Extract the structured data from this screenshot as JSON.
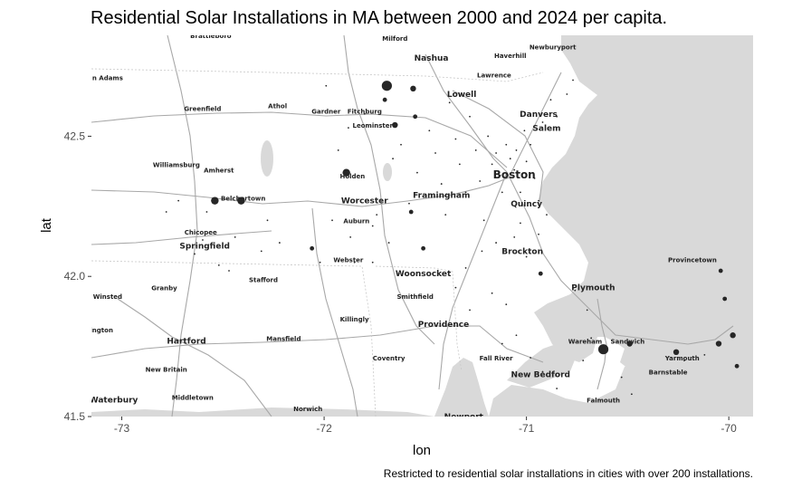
{
  "chart_data": {
    "type": "scatter",
    "title": "Residential Solar Installations in MA between 2000 and 2024 per capita.",
    "xlabel": "lon",
    "ylabel": "lat",
    "caption": "Restricted to residential solar installations in cities with over 200 installations.",
    "xlim": [
      -73.15,
      -69.88
    ],
    "ylim": [
      41.5,
      42.86
    ],
    "xticks": [
      -73,
      -72,
      -71,
      -70
    ],
    "xtick_labels": [
      "-73",
      "-72",
      "-71",
      "-70"
    ],
    "yticks": [
      41.5,
      42.0,
      42.5
    ],
    "ytick_labels": [
      "41.5",
      "42.0",
      "42.5"
    ],
    "grid": true,
    "basemap": "grayscale street map",
    "colors": {
      "point": "#262626",
      "water": "#d9d9d9",
      "land": "#ffffff",
      "road": "#aaaaaa"
    },
    "points": [
      {
        "lon": -71.69,
        "lat": 42.68,
        "size": 4
      },
      {
        "lon": -71.56,
        "lat": 42.67,
        "size": 2
      },
      {
        "lon": -71.65,
        "lat": 42.54,
        "size": 2
      },
      {
        "lon": -71.55,
        "lat": 42.57,
        "size": 1
      },
      {
        "lon": -71.89,
        "lat": 42.37,
        "size": 3
      },
      {
        "lon": -72.54,
        "lat": 42.27,
        "size": 3
      },
      {
        "lon": -72.41,
        "lat": 42.27,
        "size": 3
      },
      {
        "lon": -72.06,
        "lat": 42.1,
        "size": 1
      },
      {
        "lon": -71.57,
        "lat": 42.23,
        "size": 1
      },
      {
        "lon": -71.51,
        "lat": 42.1,
        "size": 1
      },
      {
        "lon": -70.93,
        "lat": 42.01,
        "size": 1
      },
      {
        "lon": -70.62,
        "lat": 41.74,
        "size": 4
      },
      {
        "lon": -70.49,
        "lat": 41.76,
        "size": 2
      },
      {
        "lon": -70.26,
        "lat": 41.73,
        "size": 2
      },
      {
        "lon": -70.05,
        "lat": 41.76,
        "size": 2
      },
      {
        "lon": -69.98,
        "lat": 41.79,
        "size": 2
      },
      {
        "lon": -70.02,
        "lat": 41.92,
        "size": 1
      },
      {
        "lon": -70.04,
        "lat": 42.02,
        "size": 1
      },
      {
        "lon": -69.96,
        "lat": 41.68,
        "size": 1
      },
      {
        "lon": -71.7,
        "lat": 42.63,
        "size": 1
      },
      {
        "lon": -71.76,
        "lat": 42.18,
        "size": 0
      },
      {
        "lon": -71.74,
        "lat": 42.22,
        "size": 0
      },
      {
        "lon": -71.66,
        "lat": 42.42,
        "size": 0
      },
      {
        "lon": -71.62,
        "lat": 42.47,
        "size": 0
      },
      {
        "lon": -71.58,
        "lat": 42.26,
        "size": 0
      },
      {
        "lon": -71.54,
        "lat": 42.37,
        "size": 0
      },
      {
        "lon": -71.48,
        "lat": 42.52,
        "size": 0
      },
      {
        "lon": -71.45,
        "lat": 42.44,
        "size": 0
      },
      {
        "lon": -71.42,
        "lat": 42.33,
        "size": 0
      },
      {
        "lon": -71.4,
        "lat": 42.22,
        "size": 0
      },
      {
        "lon": -71.38,
        "lat": 42.62,
        "size": 0
      },
      {
        "lon": -71.35,
        "lat": 42.49,
        "size": 0
      },
      {
        "lon": -71.33,
        "lat": 42.4,
        "size": 0
      },
      {
        "lon": -71.3,
        "lat": 42.3,
        "size": 0
      },
      {
        "lon": -71.28,
        "lat": 42.57,
        "size": 0
      },
      {
        "lon": -71.25,
        "lat": 42.45,
        "size": 0
      },
      {
        "lon": -71.23,
        "lat": 42.34,
        "size": 0
      },
      {
        "lon": -71.21,
        "lat": 42.2,
        "size": 0
      },
      {
        "lon": -71.19,
        "lat": 42.5,
        "size": 0
      },
      {
        "lon": -71.17,
        "lat": 42.4,
        "size": 0
      },
      {
        "lon": -71.15,
        "lat": 42.44,
        "size": 0
      },
      {
        "lon": -71.13,
        "lat": 42.36,
        "size": 0
      },
      {
        "lon": -71.12,
        "lat": 42.3,
        "size": 0
      },
      {
        "lon": -71.1,
        "lat": 42.47,
        "size": 0
      },
      {
        "lon": -71.08,
        "lat": 42.42,
        "size": 0
      },
      {
        "lon": -71.06,
        "lat": 42.38,
        "size": 0
      },
      {
        "lon": -71.05,
        "lat": 42.45,
        "size": 0
      },
      {
        "lon": -71.03,
        "lat": 42.3,
        "size": 0
      },
      {
        "lon": -71.01,
        "lat": 42.52,
        "size": 0
      },
      {
        "lon": -71.0,
        "lat": 42.41,
        "size": 0
      },
      {
        "lon": -70.98,
        "lat": 42.47,
        "size": 0
      },
      {
        "lon": -70.96,
        "lat": 42.35,
        "size": 0
      },
      {
        "lon": -70.94,
        "lat": 42.27,
        "size": 0
      },
      {
        "lon": -70.92,
        "lat": 42.55,
        "size": 0
      },
      {
        "lon": -70.9,
        "lat": 42.22,
        "size": 0
      },
      {
        "lon": -70.88,
        "lat": 42.63,
        "size": 0
      },
      {
        "lon": -70.85,
        "lat": 42.57,
        "size": 0
      },
      {
        "lon": -70.8,
        "lat": 42.65,
        "size": 0
      },
      {
        "lon": -70.77,
        "lat": 42.7,
        "size": 0
      },
      {
        "lon": -71.03,
        "lat": 42.19,
        "size": 0
      },
      {
        "lon": -71.06,
        "lat": 42.14,
        "size": 0
      },
      {
        "lon": -71.0,
        "lat": 42.07,
        "size": 0
      },
      {
        "lon": -70.94,
        "lat": 42.15,
        "size": 0
      },
      {
        "lon": -71.15,
        "lat": 42.12,
        "size": 0
      },
      {
        "lon": -71.22,
        "lat": 42.09,
        "size": 0
      },
      {
        "lon": -71.3,
        "lat": 42.03,
        "size": 0
      },
      {
        "lon": -71.35,
        "lat": 41.96,
        "size": 0
      },
      {
        "lon": -71.28,
        "lat": 41.88,
        "size": 0
      },
      {
        "lon": -71.17,
        "lat": 41.94,
        "size": 0
      },
      {
        "lon": -71.1,
        "lat": 41.9,
        "size": 0
      },
      {
        "lon": -71.05,
        "lat": 41.79,
        "size": 0
      },
      {
        "lon": -71.12,
        "lat": 41.76,
        "size": 0
      },
      {
        "lon": -70.98,
        "lat": 41.71,
        "size": 0
      },
      {
        "lon": -70.92,
        "lat": 41.66,
        "size": 0
      },
      {
        "lon": -70.85,
        "lat": 41.6,
        "size": 0
      },
      {
        "lon": -70.72,
        "lat": 41.7,
        "size": 0
      },
      {
        "lon": -70.68,
        "lat": 41.78,
        "size": 0
      },
      {
        "lon": -70.7,
        "lat": 41.88,
        "size": 0
      },
      {
        "lon": -70.76,
        "lat": 41.95,
        "size": 0
      },
      {
        "lon": -70.53,
        "lat": 41.64,
        "size": 0
      },
      {
        "lon": -70.48,
        "lat": 41.58,
        "size": 0
      },
      {
        "lon": -70.22,
        "lat": 41.7,
        "size": 0
      },
      {
        "lon": -70.12,
        "lat": 41.72,
        "size": 0
      },
      {
        "lon": -71.88,
        "lat": 42.53,
        "size": 0
      },
      {
        "lon": -71.93,
        "lat": 42.45,
        "size": 0
      },
      {
        "lon": -71.96,
        "lat": 42.2,
        "size": 0
      },
      {
        "lon": -71.87,
        "lat": 42.14,
        "size": 0
      },
      {
        "lon": -71.85,
        "lat": 42.05,
        "size": 0
      },
      {
        "lon": -71.76,
        "lat": 42.05,
        "size": 0
      },
      {
        "lon": -71.68,
        "lat": 42.12,
        "size": 0
      },
      {
        "lon": -71.63,
        "lat": 42.01,
        "size": 0
      },
      {
        "lon": -72.02,
        "lat": 42.05,
        "size": 0
      },
      {
        "lon": -72.22,
        "lat": 42.12,
        "size": 0
      },
      {
        "lon": -72.31,
        "lat": 42.09,
        "size": 0
      },
      {
        "lon": -72.28,
        "lat": 42.2,
        "size": 0
      },
      {
        "lon": -72.44,
        "lat": 42.14,
        "size": 0
      },
      {
        "lon": -72.52,
        "lat": 42.04,
        "size": 0
      },
      {
        "lon": -72.47,
        "lat": 42.02,
        "size": 0
      },
      {
        "lon": -72.58,
        "lat": 42.23,
        "size": 0
      },
      {
        "lon": -72.72,
        "lat": 42.27,
        "size": 0
      },
      {
        "lon": -72.78,
        "lat": 42.23,
        "size": 0
      },
      {
        "lon": -72.6,
        "lat": 42.13,
        "size": 0
      },
      {
        "lon": -72.64,
        "lat": 42.08,
        "size": 0
      },
      {
        "lon": -71.99,
        "lat": 42.68,
        "size": 0
      },
      {
        "lon": -71.8,
        "lat": 42.58,
        "size": 0
      }
    ],
    "place_labels": [
      {
        "name": "Brattleboro",
        "lon": -72.56,
        "lat": 42.85,
        "weight": "small"
      },
      {
        "name": "Milford",
        "lon": -71.65,
        "lat": 42.84,
        "weight": "small"
      },
      {
        "name": "Newburyport",
        "lon": -70.87,
        "lat": 42.81,
        "weight": "small"
      },
      {
        "name": "Haverhill",
        "lon": -71.08,
        "lat": 42.78,
        "weight": "small"
      },
      {
        "name": "Nashua",
        "lon": -71.47,
        "lat": 42.77,
        "weight": "medium"
      },
      {
        "name": "n Adams",
        "lon": -73.07,
        "lat": 42.7,
        "weight": "small"
      },
      {
        "name": "Lawrence",
        "lon": -71.16,
        "lat": 42.71,
        "weight": "small"
      },
      {
        "name": "Lowell",
        "lon": -71.32,
        "lat": 42.64,
        "weight": "medium"
      },
      {
        "name": "Greenfield",
        "lon": -72.6,
        "lat": 42.59,
        "weight": "small"
      },
      {
        "name": "Athol",
        "lon": -72.23,
        "lat": 42.6,
        "weight": "small"
      },
      {
        "name": "Gardner",
        "lon": -71.99,
        "lat": 42.58,
        "weight": "small"
      },
      {
        "name": "Fitchburg",
        "lon": -71.8,
        "lat": 42.58,
        "weight": "small"
      },
      {
        "name": "Danvers",
        "lon": -70.94,
        "lat": 42.57,
        "weight": "medium"
      },
      {
        "name": "Leominster",
        "lon": -71.76,
        "lat": 42.53,
        "weight": "small"
      },
      {
        "name": "Salem",
        "lon": -70.9,
        "lat": 42.52,
        "weight": "medium"
      },
      {
        "name": "Williamsburg",
        "lon": -72.73,
        "lat": 42.39,
        "weight": "small"
      },
      {
        "name": "Amherst",
        "lon": -72.52,
        "lat": 42.37,
        "weight": "small"
      },
      {
        "name": "Boston",
        "lon": -71.06,
        "lat": 42.35,
        "weight": "large"
      },
      {
        "name": "Holden",
        "lon": -71.86,
        "lat": 42.35,
        "weight": "small"
      },
      {
        "name": "Belchertown",
        "lon": -72.4,
        "lat": 42.27,
        "weight": "small"
      },
      {
        "name": "Framingham",
        "lon": -71.42,
        "lat": 42.28,
        "weight": "medium"
      },
      {
        "name": "Worcester",
        "lon": -71.8,
        "lat": 42.26,
        "weight": "medium"
      },
      {
        "name": "Quincy",
        "lon": -71.0,
        "lat": 42.25,
        "weight": "medium"
      },
      {
        "name": "Auburn",
        "lon": -71.84,
        "lat": 42.19,
        "weight": "small"
      },
      {
        "name": "Chicopee",
        "lon": -72.61,
        "lat": 42.15,
        "weight": "small"
      },
      {
        "name": "Springfield",
        "lon": -72.59,
        "lat": 42.1,
        "weight": "medium"
      },
      {
        "name": "Brockton",
        "lon": -71.02,
        "lat": 42.08,
        "weight": "medium"
      },
      {
        "name": "Webster",
        "lon": -71.88,
        "lat": 42.05,
        "weight": "small"
      },
      {
        "name": "Provincetown",
        "lon": -70.18,
        "lat": 42.05,
        "weight": "small"
      },
      {
        "name": "Woonsocket",
        "lon": -71.51,
        "lat": 42.0,
        "weight": "medium"
      },
      {
        "name": "Stafford",
        "lon": -72.3,
        "lat": 41.98,
        "weight": "small"
      },
      {
        "name": "Granby",
        "lon": -72.79,
        "lat": 41.95,
        "weight": "small"
      },
      {
        "name": "Plymouth",
        "lon": -70.67,
        "lat": 41.95,
        "weight": "medium"
      },
      {
        "name": "Winsted",
        "lon": -73.07,
        "lat": 41.92,
        "weight": "small"
      },
      {
        "name": "Smithfield",
        "lon": -71.55,
        "lat": 41.92,
        "weight": "small"
      },
      {
        "name": "Killingly",
        "lon": -71.85,
        "lat": 41.84,
        "weight": "small"
      },
      {
        "name": "Providence",
        "lon": -71.41,
        "lat": 41.82,
        "weight": "medium"
      },
      {
        "name": "ington",
        "lon": -73.1,
        "lat": 41.8,
        "weight": "small"
      },
      {
        "name": "Mansfield",
        "lon": -72.2,
        "lat": 41.77,
        "weight": "small"
      },
      {
        "name": "Hartford",
        "lon": -72.68,
        "lat": 41.76,
        "weight": "medium"
      },
      {
        "name": "Wareham",
        "lon": -70.71,
        "lat": 41.76,
        "weight": "small"
      },
      {
        "name": "Sandwich",
        "lon": -70.5,
        "lat": 41.76,
        "weight": "small"
      },
      {
        "name": "Coventry",
        "lon": -71.68,
        "lat": 41.7,
        "weight": "small"
      },
      {
        "name": "Fall River",
        "lon": -71.15,
        "lat": 41.7,
        "weight": "small"
      },
      {
        "name": "Yarmouth",
        "lon": -70.23,
        "lat": 41.7,
        "weight": "small"
      },
      {
        "name": "New Britain",
        "lon": -72.78,
        "lat": 41.66,
        "weight": "small"
      },
      {
        "name": "Barnstable",
        "lon": -70.3,
        "lat": 41.65,
        "weight": "small"
      },
      {
        "name": "New Bedford",
        "lon": -70.93,
        "lat": 41.64,
        "weight": "medium"
      },
      {
        "name": "Middletown",
        "lon": -72.65,
        "lat": 41.56,
        "weight": "small"
      },
      {
        "name": "Waterbury",
        "lon": -73.04,
        "lat": 41.55,
        "weight": "medium"
      },
      {
        "name": "Falmouth",
        "lon": -70.62,
        "lat": 41.55,
        "weight": "small"
      },
      {
        "name": "Norwich",
        "lon": -72.08,
        "lat": 41.52,
        "weight": "small"
      },
      {
        "name": "Newport",
        "lon": -71.31,
        "lat": 41.49,
        "weight": "medium"
      }
    ]
  }
}
